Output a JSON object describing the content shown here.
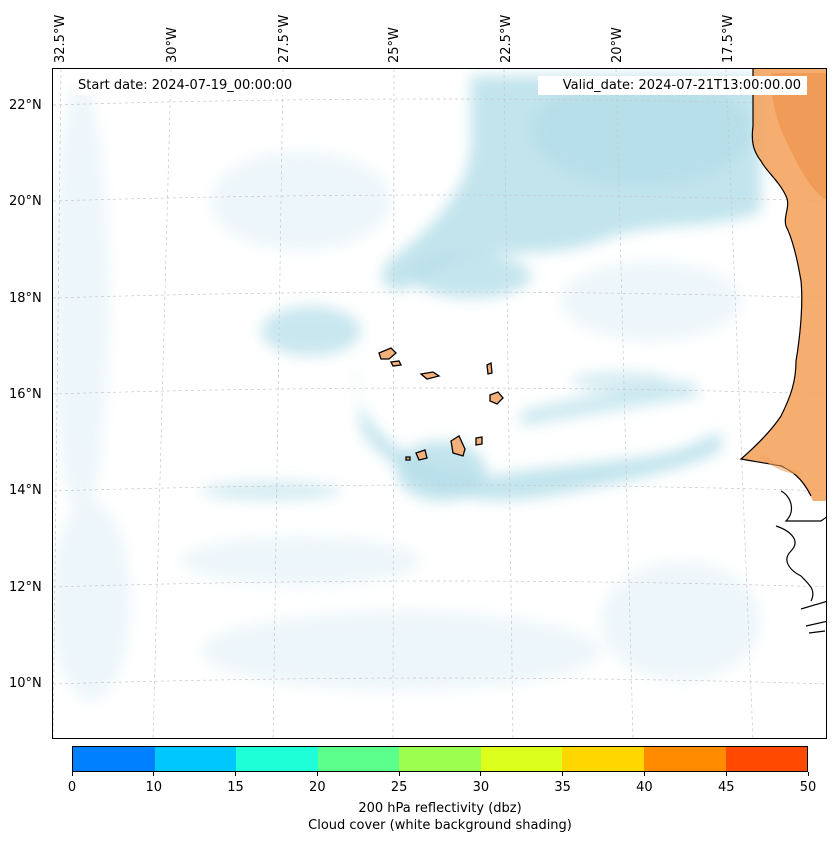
{
  "map": {
    "start_date": "Start date: 2024-07-19_00:00:00",
    "valid_date": "Valid_date: 2024-07-21T13:00:00.00",
    "longitude_labels": [
      "32.5°W",
      "30°W",
      "27.5°W",
      "25°W",
      "22.5°W",
      "20°W",
      "17.5°W"
    ],
    "latitude_labels": [
      "22°N",
      "20°N",
      "18°N",
      "16°N",
      "14°N",
      "12°N",
      "10°N"
    ],
    "ocean_color": "#ffffff",
    "land_reflectivity_color": "#f4a460",
    "cloud_color": "#add8e6",
    "coastline_color": "#000000"
  },
  "colorbar": {
    "title": "200 hPa reflectivity (dbz)",
    "subtitle": "Cloud cover (white background shading)",
    "tick_labels": [
      "0",
      "10",
      "15",
      "20",
      "25",
      "30",
      "35",
      "40",
      "45",
      "50"
    ],
    "colors": [
      "#0080ff",
      "#00c8ff",
      "#1effd8",
      "#5aff8c",
      "#9cff50",
      "#dcff1e",
      "#ffd700",
      "#ff8c00",
      "#ff4a00"
    ]
  }
}
